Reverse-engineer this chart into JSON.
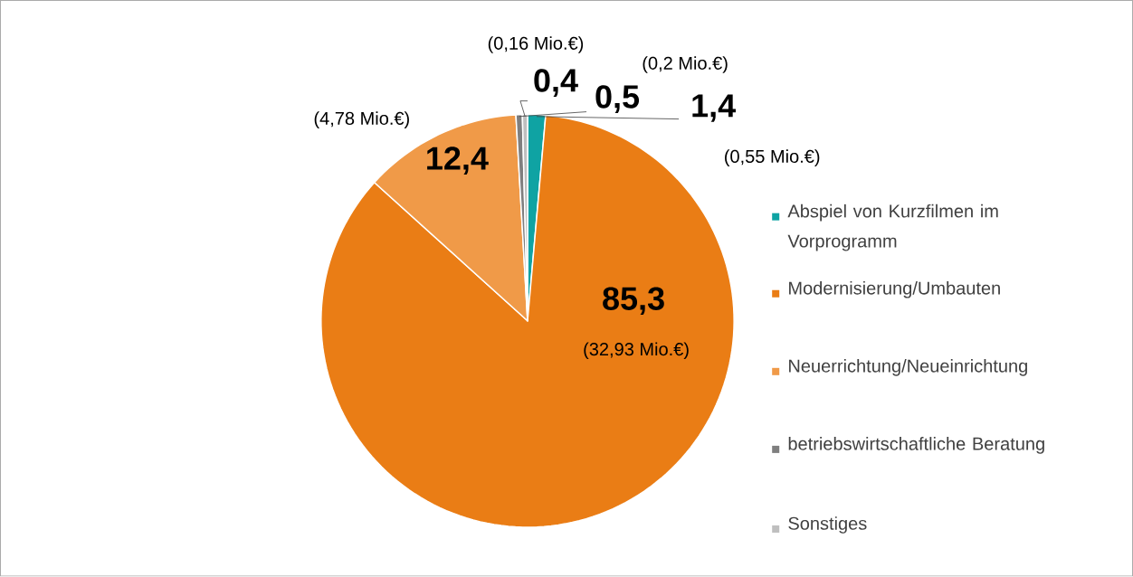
{
  "chart_data": {
    "type": "pie",
    "categories": [
      "Abspiel von Kurzfilmen im Vorprogramm",
      "Modernisierung/Umbauten",
      "Neuerrichtung/Neueinrichtung",
      "betriebswirtschaftliche Beratung",
      "Sonstiges"
    ],
    "values": [
      1.4,
      85.3,
      12.4,
      0.5,
      0.4
    ],
    "colors": [
      "#0fa3a3",
      "#ea7d15",
      "#f09a48",
      "#7f7f7f",
      "#bfbfbf"
    ],
    "value_labels": [
      "1,4",
      "85,3",
      "12,4",
      "0,5",
      "0,4"
    ],
    "annotations": [
      "(0,55 Mio.€)",
      "(32,93 Mio.€)",
      "(4,78 Mio.€)",
      "(0,2 Mio.€)",
      "(0,16 Mio.€)"
    ],
    "legend": "right"
  }
}
